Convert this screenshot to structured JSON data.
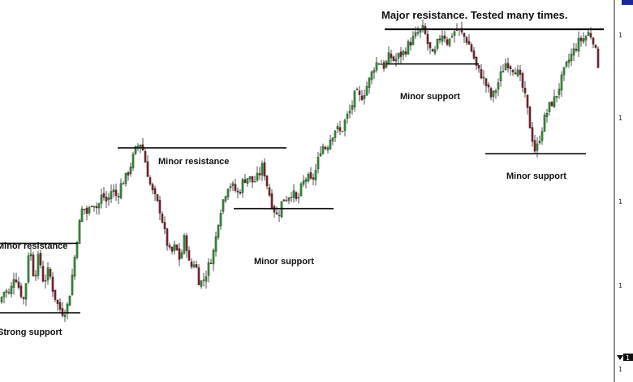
{
  "chart_data": {
    "type": "candlestick",
    "title": "Major resistance. Tested many times.",
    "candle_colors": {
      "up": "#2e8b2e",
      "down": "#7a1f2b",
      "wick": "#222222"
    },
    "price_path": [
      [
        0,
        0.05
      ],
      [
        8,
        0.1
      ],
      [
        14,
        0.08
      ],
      [
        20,
        0.16
      ],
      [
        26,
        0.1
      ],
      [
        32,
        0.06
      ],
      [
        38,
        0.26
      ],
      [
        44,
        0.14
      ],
      [
        50,
        0.22
      ],
      [
        56,
        0.12
      ],
      [
        62,
        0.17
      ],
      [
        68,
        0.09
      ],
      [
        74,
        0.04
      ],
      [
        80,
        0.02
      ],
      [
        86,
        0.05
      ],
      [
        92,
        0.17
      ],
      [
        98,
        0.3
      ],
      [
        104,
        0.39
      ],
      [
        110,
        0.36
      ],
      [
        116,
        0.41
      ],
      [
        122,
        0.38
      ],
      [
        128,
        0.43
      ],
      [
        134,
        0.4
      ],
      [
        140,
        0.45
      ],
      [
        146,
        0.42
      ],
      [
        152,
        0.47
      ],
      [
        158,
        0.49
      ],
      [
        164,
        0.54
      ],
      [
        170,
        0.59
      ],
      [
        176,
        0.61
      ],
      [
        182,
        0.53
      ],
      [
        188,
        0.45
      ],
      [
        194,
        0.41
      ],
      [
        200,
        0.37
      ],
      [
        206,
        0.28
      ],
      [
        212,
        0.22
      ],
      [
        218,
        0.25
      ],
      [
        224,
        0.2
      ],
      [
        230,
        0.29
      ],
      [
        236,
        0.17
      ],
      [
        242,
        0.2
      ],
      [
        248,
        0.12
      ],
      [
        254,
        0.14
      ],
      [
        260,
        0.19
      ],
      [
        266,
        0.24
      ],
      [
        272,
        0.36
      ],
      [
        278,
        0.42
      ],
      [
        284,
        0.47
      ],
      [
        290,
        0.45
      ],
      [
        296,
        0.43
      ],
      [
        302,
        0.48
      ],
      [
        308,
        0.49
      ],
      [
        314,
        0.47
      ],
      [
        320,
        0.49
      ],
      [
        326,
        0.53
      ],
      [
        332,
        0.45
      ],
      [
        338,
        0.39
      ],
      [
        344,
        0.35
      ],
      [
        350,
        0.41
      ],
      [
        356,
        0.42
      ],
      [
        362,
        0.44
      ],
      [
        368,
        0.4
      ],
      [
        374,
        0.46
      ],
      [
        380,
        0.49
      ],
      [
        386,
        0.47
      ],
      [
        392,
        0.52
      ],
      [
        398,
        0.6
      ],
      [
        404,
        0.59
      ],
      [
        410,
        0.63
      ],
      [
        416,
        0.66
      ],
      [
        422,
        0.64
      ],
      [
        428,
        0.69
      ],
      [
        434,
        0.72
      ],
      [
        440,
        0.78
      ],
      [
        446,
        0.76
      ],
      [
        452,
        0.79
      ],
      [
        458,
        0.83
      ],
      [
        464,
        0.88
      ],
      [
        470,
        0.89
      ],
      [
        476,
        0.87
      ],
      [
        482,
        0.91
      ],
      [
        488,
        0.89
      ],
      [
        494,
        0.91
      ],
      [
        500,
        0.92
      ],
      [
        506,
        0.95
      ],
      [
        512,
        0.97
      ],
      [
        518,
        0.99
      ],
      [
        524,
        1.0
      ],
      [
        530,
        0.94
      ],
      [
        536,
        0.9
      ],
      [
        542,
        0.96
      ],
      [
        548,
        0.99
      ],
      [
        554,
        0.95
      ],
      [
        560,
        0.99
      ],
      [
        566,
        1.0
      ],
      [
        572,
        0.98
      ],
      [
        578,
        0.96
      ],
      [
        584,
        0.92
      ],
      [
        590,
        0.86
      ],
      [
        596,
        0.84
      ],
      [
        602,
        0.8
      ],
      [
        608,
        0.76
      ],
      [
        614,
        0.8
      ],
      [
        620,
        0.85
      ],
      [
        626,
        0.89
      ],
      [
        632,
        0.87
      ],
      [
        638,
        0.86
      ],
      [
        644,
        0.82
      ],
      [
        650,
        0.75
      ],
      [
        656,
        0.65
      ],
      [
        662,
        0.57
      ],
      [
        668,
        0.64
      ],
      [
        674,
        0.7
      ],
      [
        680,
        0.74
      ],
      [
        686,
        0.76
      ],
      [
        692,
        0.81
      ],
      [
        698,
        0.86
      ],
      [
        704,
        0.9
      ],
      [
        710,
        0.93
      ],
      [
        716,
        0.96
      ],
      [
        722,
        0.97
      ],
      [
        728,
        0.99
      ],
      [
        734,
        0.96
      ],
      [
        738,
        0.88
      ]
    ],
    "levels": [
      {
        "type": "resistance",
        "label": "Major resistance. Tested many times.",
        "value": 1.0,
        "x_from": 474,
        "x_to": 744
      },
      {
        "type": "resistance",
        "label": "Minor resistance",
        "value": 0.59,
        "x_from": 145,
        "x_to": 353
      },
      {
        "type": "resistance",
        "label": "Minor resistance",
        "value": 0.26,
        "x_from": 0,
        "x_to": 96
      },
      {
        "type": "support",
        "label": "Minor support",
        "value": 0.88,
        "x_from": 476,
        "x_to": 590
      },
      {
        "type": "support",
        "label": "Minor support",
        "value": 0.57,
        "x_from": 598,
        "x_to": 722
      },
      {
        "type": "support",
        "label": "Minor support",
        "value": 0.38,
        "x_from": 288,
        "x_to": 411
      },
      {
        "type": "support",
        "label": "Strong support",
        "value": 0.02,
        "x_from": 0,
        "x_to": 99
      }
    ],
    "y_axis_ticks": [
      "1",
      "1",
      "1",
      "1",
      "1",
      "1"
    ],
    "y_axis_marker": "1"
  }
}
